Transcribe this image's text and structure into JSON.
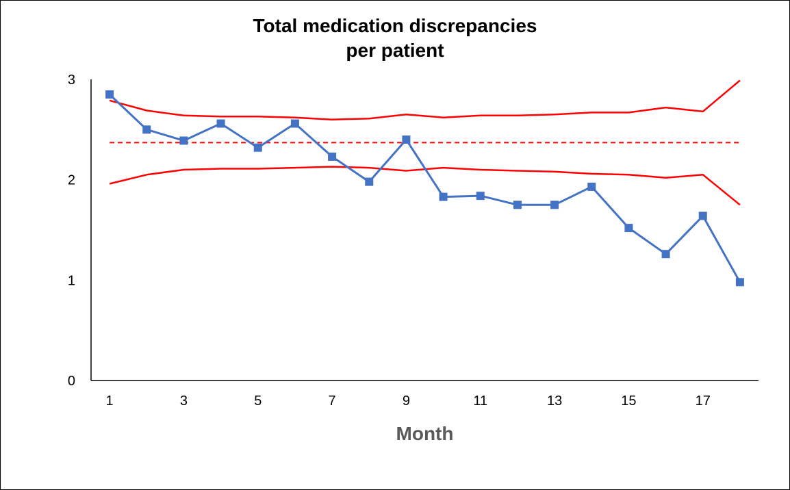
{
  "chart_data": {
    "type": "line",
    "title_line1": "Total medication discrepancies",
    "title_line2": "per patient",
    "xlabel": "Month",
    "ylabel": "",
    "x": [
      1,
      2,
      3,
      4,
      5,
      6,
      7,
      8,
      9,
      10,
      11,
      12,
      13,
      14,
      15,
      16,
      17,
      18
    ],
    "x_tick_labels": [
      "1",
      "3",
      "5",
      "7",
      "9",
      "11",
      "13",
      "15",
      "17"
    ],
    "x_tick_values": [
      1,
      3,
      5,
      7,
      9,
      11,
      13,
      15,
      17
    ],
    "y_tick_values": [
      0,
      1,
      2,
      3
    ],
    "y_tick_labels": [
      "0",
      "1",
      "2",
      "3"
    ],
    "ylim": [
      0,
      3
    ],
    "xlim": [
      0.5,
      18.5
    ],
    "grid": false,
    "legend": "none",
    "series": [
      {
        "key": "discrepancies",
        "values": [
          2.85,
          2.5,
          2.39,
          2.56,
          2.32,
          2.56,
          2.23,
          1.98,
          2.4,
          1.83,
          1.84,
          1.75,
          1.75,
          1.93,
          1.52,
          1.26,
          1.64,
          0.98
        ],
        "color": "#4472C4",
        "style": "solid",
        "marker": "square"
      },
      {
        "key": "upper-control-limit",
        "values": [
          2.79,
          2.69,
          2.64,
          2.63,
          2.63,
          2.62,
          2.6,
          2.61,
          2.65,
          2.62,
          2.64,
          2.64,
          2.65,
          2.67,
          2.67,
          2.72,
          2.68,
          2.99
        ],
        "color": "#FF0000",
        "style": "solid",
        "marker": "none"
      },
      {
        "key": "lower-control-limit",
        "values": [
          1.96,
          2.05,
          2.1,
          2.11,
          2.11,
          2.12,
          2.13,
          2.12,
          2.09,
          2.12,
          2.1,
          2.09,
          2.08,
          2.06,
          2.05,
          2.02,
          2.05,
          1.75
        ],
        "color": "#FF0000",
        "style": "solid",
        "marker": "none"
      },
      {
        "key": "mean",
        "values": [
          2.37,
          2.37,
          2.37,
          2.37,
          2.37,
          2.37,
          2.37,
          2.37,
          2.37,
          2.37,
          2.37,
          2.37,
          2.37,
          2.37,
          2.37,
          2.37,
          2.37,
          2.37
        ],
        "color": "#FF0000",
        "style": "dashed",
        "marker": "none"
      }
    ]
  }
}
